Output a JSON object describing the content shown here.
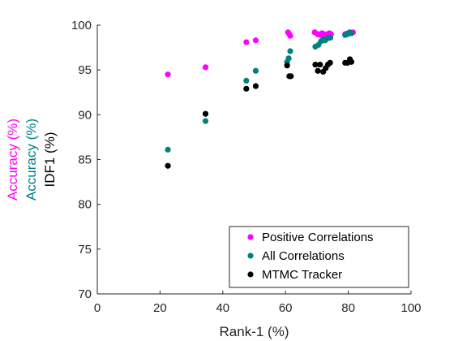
{
  "chart_data": {
    "type": "scatter",
    "title": "",
    "xlabel": "Rank-1 (%)",
    "ylabel_lines": [
      {
        "text": "Accuracy (%)",
        "color": "#ff00ff"
      },
      {
        "text": "Accuracy (%)",
        "color": "#008080"
      },
      {
        "text": "IDF1 (%)",
        "color": "#000000"
      }
    ],
    "xlim": [
      0,
      100
    ],
    "ylim": [
      70,
      100
    ],
    "xticks": [
      0,
      20,
      40,
      60,
      80,
      100
    ],
    "yticks": [
      70,
      75,
      80,
      85,
      90,
      95,
      100
    ],
    "grid": false,
    "legend_position": "bottom-right",
    "series": [
      {
        "name": "Positive Correlations",
        "color": "#ff00ff",
        "x": [
          22.5,
          34.5,
          47.5,
          50.5,
          60.8,
          61.2,
          61.5,
          69.3,
          70.2,
          71.0,
          71.6,
          72.2,
          72.8,
          73.4,
          74.0,
          74.5,
          79.0,
          79.8,
          80.5,
          81.0,
          81.5
        ],
        "y": [
          94.5,
          95.3,
          98.1,
          98.3,
          99.2,
          99.0,
          98.8,
          99.2,
          99.0,
          98.9,
          99.1,
          99.0,
          98.8,
          99.0,
          99.1,
          99.0,
          99.0,
          99.1,
          99.2,
          99.1,
          99.2
        ]
      },
      {
        "name": "All Correlations",
        "color": "#008080",
        "x": [
          22.5,
          34.5,
          47.5,
          50.5,
          60.5,
          61.0,
          61.5,
          69.5,
          70.5,
          71.3,
          72.0,
          72.6,
          73.2,
          73.8,
          74.3,
          79.0,
          79.8,
          80.5,
          81.0
        ],
        "y": [
          86.1,
          89.3,
          93.8,
          94.9,
          95.9,
          96.3,
          97.1,
          97.6,
          97.8,
          98.2,
          98.4,
          98.3,
          98.5,
          98.6,
          98.6,
          98.9,
          99.0,
          99.2,
          99.1
        ]
      },
      {
        "name": "MTMC Tracker",
        "color": "#000000",
        "x": [
          22.5,
          34.5,
          47.5,
          50.5,
          60.5,
          61.2,
          61.7,
          69.5,
          70.3,
          71.0,
          72.0,
          72.8,
          73.5,
          74.2,
          79.0,
          79.8,
          80.5,
          81.0
        ],
        "y": [
          84.3,
          90.1,
          92.9,
          93.2,
          95.5,
          94.3,
          94.3,
          95.6,
          94.9,
          95.6,
          94.8,
          95.2,
          95.6,
          95.8,
          95.8,
          95.8,
          96.2,
          95.9
        ]
      }
    ]
  }
}
